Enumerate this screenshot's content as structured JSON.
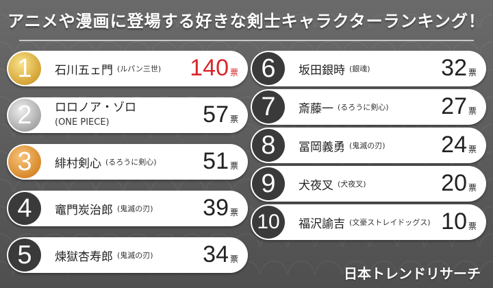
{
  "title": "アニメや漫画に登場する好きな剣士キャラクターランキング！",
  "brand": "日本トレンドリサーチ",
  "unit": "票",
  "left": [
    {
      "rank": "1",
      "name": "石川五ェ門",
      "sub": "(ルパン三世)",
      "votes": "140",
      "style": "gold"
    },
    {
      "rank": "2",
      "name": "ロロノア・ゾロ",
      "sub": "(ONE PIECE)",
      "votes": "57",
      "style": "silver"
    },
    {
      "rank": "3",
      "name": "緋村剣心",
      "sub": "(るろうに剣心)",
      "votes": "51",
      "style": "bronze"
    },
    {
      "rank": "4",
      "name": "竈門炭治郎",
      "sub": "(鬼滅の刃)",
      "votes": "39",
      "style": "dark"
    },
    {
      "rank": "5",
      "name": "煉獄杏寿郎",
      "sub": "(鬼滅の刃)",
      "votes": "34",
      "style": "dark"
    }
  ],
  "right": [
    {
      "rank": "6",
      "name": "坂田銀時",
      "sub": "(銀魂)",
      "votes": "32"
    },
    {
      "rank": "7",
      "name": "斎藤一",
      "sub": "(るろうに剣心)",
      "votes": "27"
    },
    {
      "rank": "8",
      "name": "冨岡義勇",
      "sub": "(鬼滅の刃)",
      "votes": "24"
    },
    {
      "rank": "9",
      "name": "犬夜叉",
      "sub": "(犬夜叉)",
      "votes": "20"
    },
    {
      "rank": "10",
      "name": "福沢諭吉",
      "sub": "(文豪ストレイドッグス)",
      "votes": "10"
    }
  ]
}
